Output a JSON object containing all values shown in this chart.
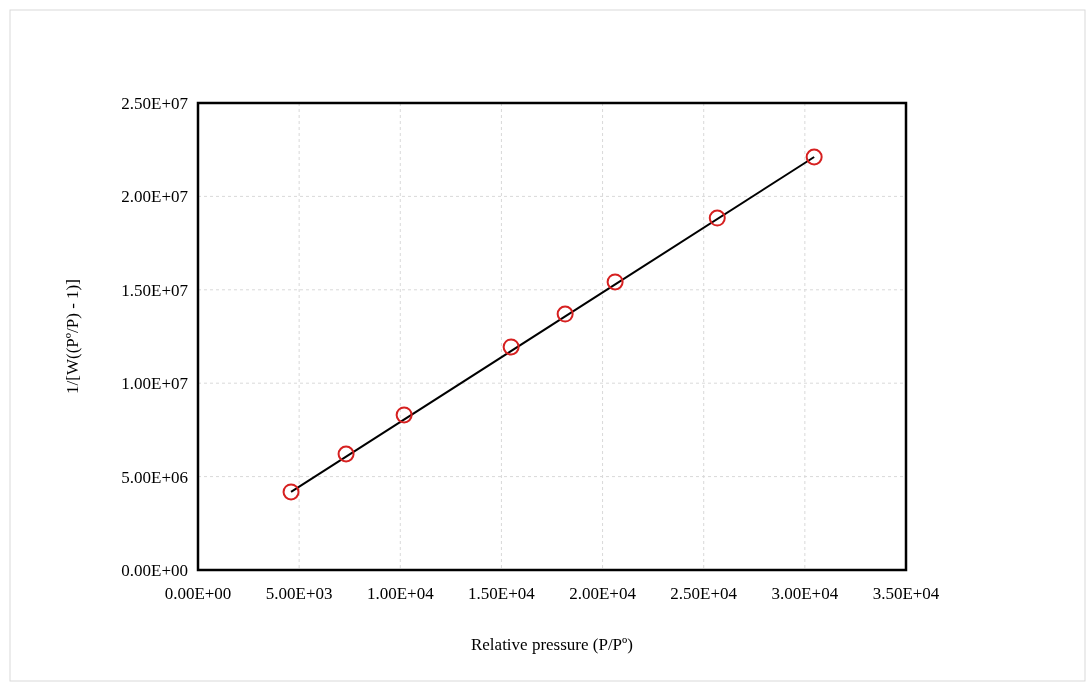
{
  "chart_data": {
    "type": "scatter",
    "xlabel": "Relative pressure (P/Pº)",
    "ylabel": "1/[W((Pº/P) - 1)]",
    "xlim": [
      0,
      35000
    ],
    "ylim": [
      0,
      25000000
    ],
    "xticks": [
      {
        "value": 0,
        "label": "0.00E+00"
      },
      {
        "value": 5000,
        "label": "5.00E+03"
      },
      {
        "value": 10000,
        "label": "1.00E+04"
      },
      {
        "value": 15000,
        "label": "1.50E+04"
      },
      {
        "value": 20000,
        "label": "2.00E+04"
      },
      {
        "value": 25000,
        "label": "2.50E+04"
      },
      {
        "value": 30000,
        "label": "3.00E+04"
      },
      {
        "value": 35000,
        "label": "3.50E+04"
      }
    ],
    "yticks": [
      {
        "value": 0,
        "label": "0.00E+00"
      },
      {
        "value": 5000000,
        "label": "5.00E+06"
      },
      {
        "value": 10000000,
        "label": "1.00E+07"
      },
      {
        "value": 15000000,
        "label": "1.50E+07"
      },
      {
        "value": 20000000,
        "label": "2.00E+07"
      },
      {
        "value": 25000000,
        "label": "2.50E+07"
      }
    ],
    "grid": true,
    "marker": "circle",
    "series": [
      {
        "type": "line",
        "color": "#000000",
        "marker": "none",
        "x": [
          4600,
          30460
        ],
        "values": [
          4180000,
          22110000
        ]
      },
      {
        "color": "#d62020",
        "x": [
          4600,
          7320,
          10190,
          15480,
          18150,
          20620,
          25670,
          30460
        ],
        "values": [
          4180000,
          6210000,
          8300000,
          11940000,
          13700000,
          15420000,
          18840000,
          22110000
        ]
      }
    ]
  }
}
